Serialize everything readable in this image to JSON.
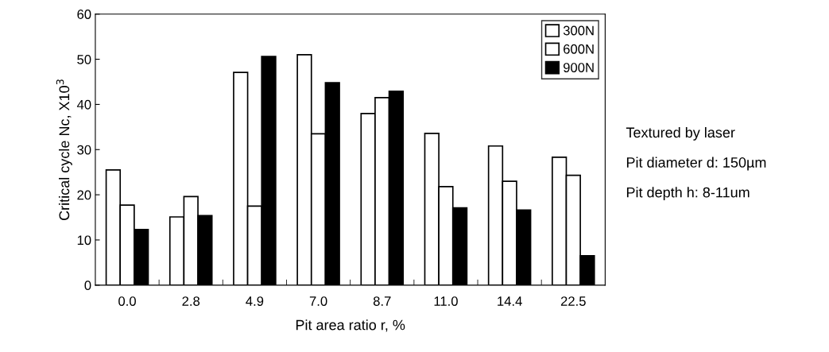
{
  "chart_data": {
    "type": "bar",
    "xlabel": "Pit area ratio r, %",
    "ylabel": "Critical cycle Nc, X10$^{3}$",
    "categories": [
      "0.0",
      "2.8",
      "4.9",
      "7.0",
      "8.7",
      "11.0",
      "14.4",
      "22.5"
    ],
    "series": [
      {
        "name": "300N",
        "color": "#ffffff",
        "values": [
          25.5,
          15.1,
          47.1,
          51.0,
          38.0,
          33.6,
          30.8,
          28.3
        ]
      },
      {
        "name": "600N",
        "color": "#ffffff",
        "values": [
          17.7,
          19.6,
          17.5,
          33.5,
          41.5,
          21.8,
          23.0,
          24.3
        ]
      },
      {
        "name": "900N",
        "color": "#000000",
        "values": [
          12.3,
          15.4,
          50.6,
          44.8,
          42.9,
          17.1,
          16.6,
          6.5
        ]
      }
    ],
    "ylim": [
      0,
      60
    ],
    "yticks": [
      0,
      10,
      20,
      30,
      40,
      50,
      60
    ],
    "grid": false,
    "legend": "top right",
    "annotations": [
      "Textured by laser",
      "Pit diameter d: 150µm",
      "Pit depth h: 8-11um"
    ]
  }
}
